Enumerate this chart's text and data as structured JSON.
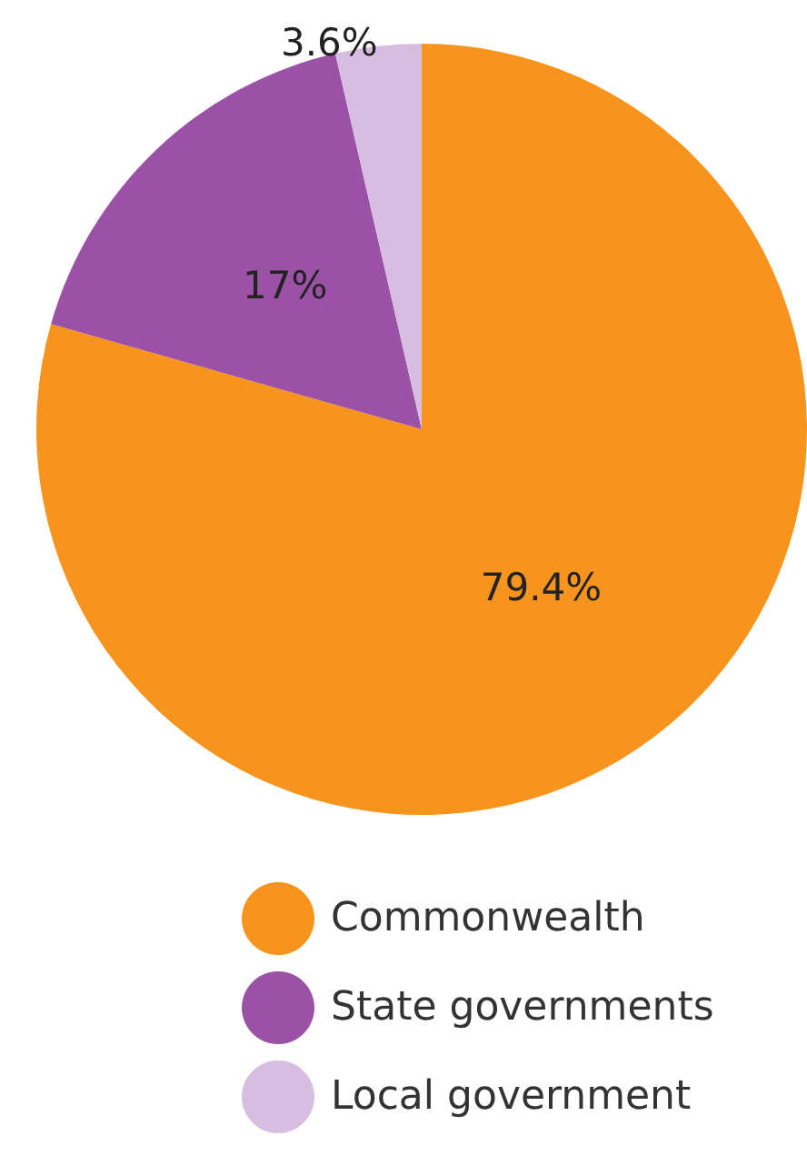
{
  "chart_data": {
    "type": "pie",
    "categories": [
      "Commonwealth",
      "State governments",
      "Local government"
    ],
    "values": [
      79.4,
      17,
      3.6
    ],
    "value_labels": [
      "79.4%",
      "17%",
      "3.6%"
    ],
    "colors": [
      "#f7941d",
      "#9b52a6",
      "#d7bde0"
    ],
    "legend": "bottom"
  }
}
